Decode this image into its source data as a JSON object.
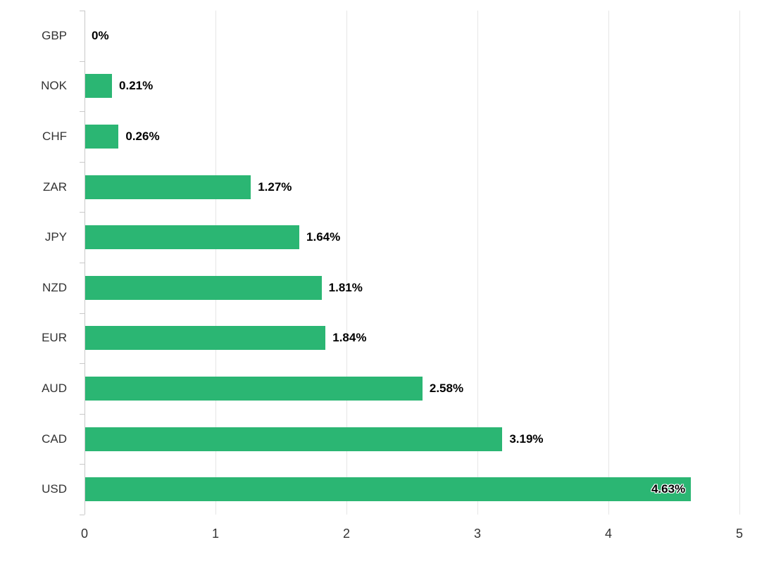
{
  "chart_data": {
    "type": "bar",
    "orientation": "horizontal",
    "title": "",
    "xlabel": "",
    "ylabel": "",
    "categories": [
      "GBP",
      "NOK",
      "CHF",
      "ZAR",
      "JPY",
      "NZD",
      "EUR",
      "AUD",
      "CAD",
      "USD"
    ],
    "values": [
      0,
      0.21,
      0.26,
      1.27,
      1.64,
      1.81,
      1.84,
      2.58,
      3.19,
      4.63
    ],
    "value_labels": [
      "0%",
      "0.21%",
      "0.26%",
      "1.27%",
      "1.64%",
      "1.81%",
      "1.84%",
      "2.58%",
      "3.19%",
      "4.63%"
    ],
    "x_ticks": [
      "0",
      "1",
      "2",
      "3",
      "4",
      "5"
    ],
    "x_tick_values": [
      0,
      1,
      2,
      3,
      4,
      5
    ],
    "xlim": [
      0,
      5
    ],
    "grid": true,
    "legend": "none",
    "colors": {
      "bar": "#2bb673",
      "grid": "#e6e6e6",
      "axis": "#c9c9c9",
      "category_text": "#333333",
      "value_text": "#000000",
      "tick_text": "#333333"
    }
  }
}
